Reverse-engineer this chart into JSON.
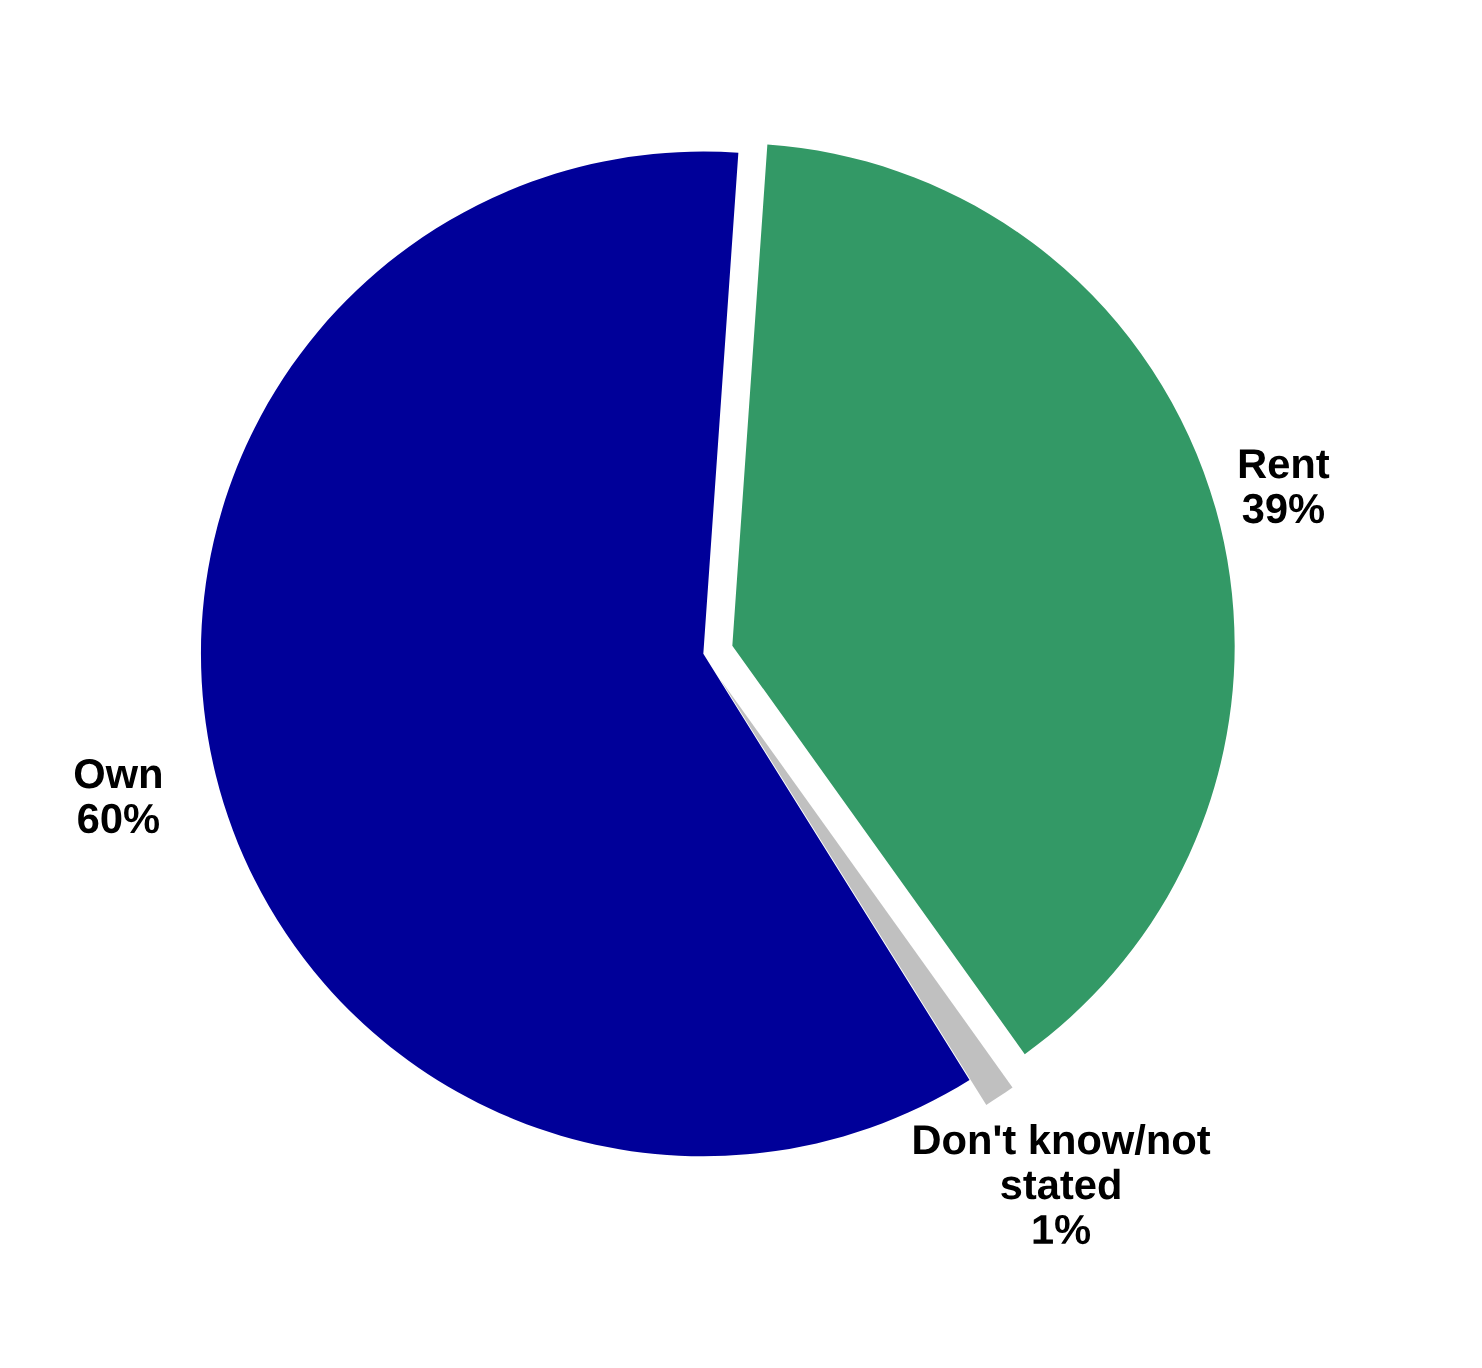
{
  "chart_data": {
    "type": "pie",
    "categories": [
      "Rent",
      "Don't know/not\nstated",
      "Own"
    ],
    "values": [
      39,
      1,
      60
    ],
    "value_labels": [
      "39%",
      "1%",
      "60%"
    ],
    "colors": [
      "#339966",
      "#c0c0c0",
      "#000099"
    ]
  }
}
